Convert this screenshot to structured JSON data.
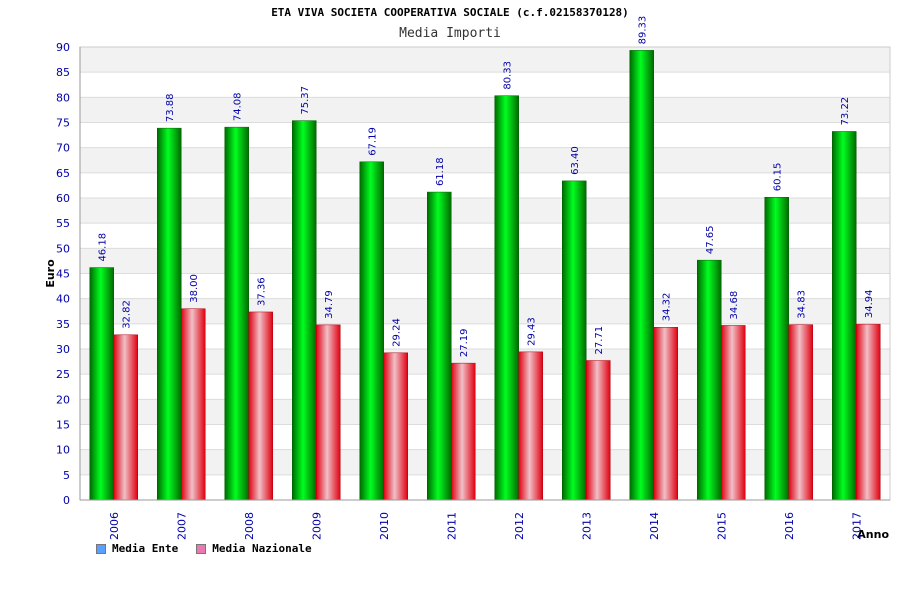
{
  "colors": {
    "ente": "#00c000",
    "nazionale": "#ff2020",
    "axis_text": "#0000aa",
    "legend_ente": "#5aa0ff",
    "legend_nazionale": "#e87ab0"
  },
  "chart_data": {
    "type": "bar",
    "title": "ETA VIVA SOCIETA COOPERATIVA SOCIALE (c.f.02158370128)",
    "subtitle": "Media Importi",
    "ylabel": "Euro",
    "xlabel": "Anno",
    "ylim": [
      0,
      90
    ],
    "ytick_step": 5,
    "grid": true,
    "legend_position": "bottom-left",
    "categories": [
      "2006",
      "2007",
      "2008",
      "2009",
      "2010",
      "2011",
      "2012",
      "2013",
      "2014",
      "2015",
      "2016",
      "2017"
    ],
    "series": [
      {
        "name": "Media Ente",
        "values": [
          46.18,
          73.88,
          74.08,
          75.37,
          67.19,
          61.18,
          80.33,
          63.4,
          89.33,
          47.65,
          60.15,
          73.22
        ]
      },
      {
        "name": "Media Nazionale",
        "values": [
          32.82,
          38.0,
          37.36,
          34.79,
          29.24,
          27.19,
          29.43,
          27.71,
          34.32,
          34.68,
          34.83,
          34.94
        ]
      }
    ]
  }
}
